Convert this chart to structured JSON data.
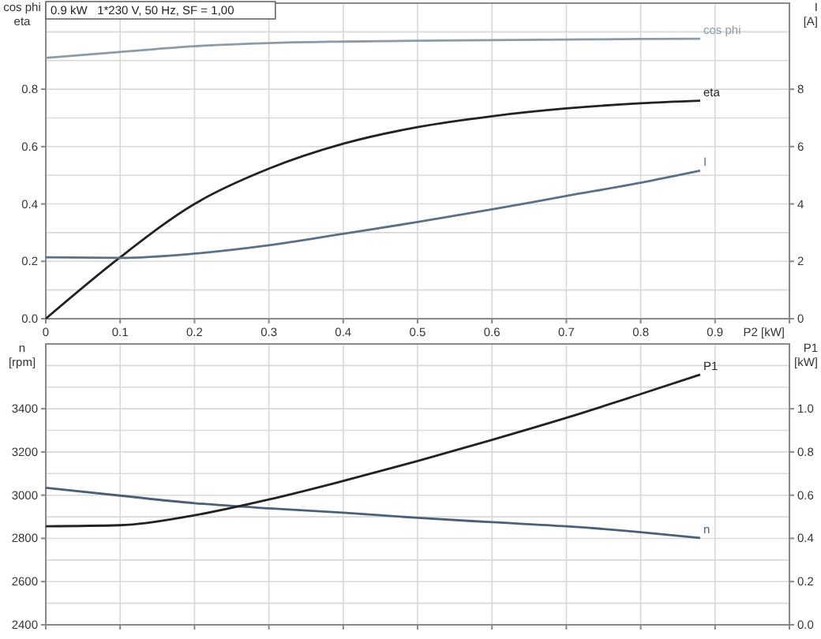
{
  "chart_data": [
    {
      "type": "line",
      "title": "0.9 kW   1*230 V, 50 Hz, SF = 1,00",
      "xlabel": "P2 [kW]",
      "ylabel": "cos phi\neta",
      "y2label": "I\n[A]",
      "x": [
        0,
        0.1,
        0.2,
        0.3,
        0.4,
        0.5,
        0.6,
        0.7,
        0.8,
        0.88
      ],
      "xlim": [
        0,
        1.0
      ],
      "xticks": [
        {
          "value": 0,
          "label": "0"
        },
        0.1,
        0.2,
        0.3,
        0.4,
        0.5,
        0.6,
        0.7,
        0.8,
        0.9,
        {
          "value": 1.0,
          "label": null
        }
      ],
      "ylim": [
        0,
        1.1
      ],
      "yticks": [
        {
          "value": 0,
          "label": "0.0"
        },
        {
          "value": 0.1,
          "label": null
        },
        0.2,
        {
          "value": 0.3,
          "label": null
        },
        0.4,
        {
          "value": 0.5,
          "label": null
        },
        0.6,
        {
          "value": 0.7,
          "label": null
        },
        0.8,
        {
          "value": 0.9,
          "label": null
        },
        {
          "value": 1.0,
          "label": null
        }
      ],
      "y2lim": [
        0,
        11
      ],
      "y2ticks": [
        0,
        2,
        4,
        6,
        8
      ],
      "grid": true,
      "series": [
        {
          "name": "cos phi",
          "color": "#8c9ba6",
          "values": [
            0.909,
            0.93,
            0.95,
            0.961,
            0.966,
            0.969,
            0.971,
            0.973,
            0.975,
            0.976
          ]
        },
        {
          "name": "eta",
          "color": "#222222",
          "values": [
            0,
            0.214,
            0.4,
            0.523,
            0.61,
            0.668,
            0.706,
            0.733,
            0.751,
            0.76
          ]
        },
        {
          "name": "I",
          "color": "#5a7088",
          "axis": "y2",
          "values": [
            2.14,
            2.12,
            2.27,
            2.56,
            2.96,
            3.37,
            3.81,
            4.28,
            4.74,
            5.16
          ]
        }
      ]
    },
    {
      "type": "line",
      "ylabel": "n\n[rpm]",
      "y2label": "P1\n[kW]",
      "x": [
        0,
        0.1,
        0.2,
        0.3,
        0.4,
        0.5,
        0.6,
        0.7,
        0.8,
        0.88
      ],
      "xlim": [
        0,
        1.0
      ],
      "xticks": [
        0,
        0.1,
        0.2,
        0.3,
        0.4,
        0.5,
        0.6,
        0.7,
        0.8,
        0.9,
        1.0
      ],
      "tick_labels": "y",
      "ylim": [
        2400,
        3700
      ],
      "yticks": [
        2400,
        {
          "value": 2500,
          "label": null
        },
        2600,
        {
          "value": 2700,
          "label": null
        },
        2800,
        {
          "value": 2900,
          "label": null
        },
        3000,
        {
          "value": 3100,
          "label": null
        },
        3200,
        {
          "value": 3300,
          "label": null
        },
        3400,
        {
          "value": 3500,
          "label": null
        },
        {
          "value": 3600,
          "label": null
        }
      ],
      "y2lim": [
        0,
        1.3
      ],
      "y2ticks": [
        {
          "value": 0,
          "label": "0.0"
        },
        0.2,
        0.4,
        0.6,
        0.8,
        {
          "value": 1.0,
          "label": "1.0"
        }
      ],
      "grid": true,
      "series": [
        {
          "name": "n",
          "color": "#4a6078",
          "values": [
            3034,
            2998,
            2963,
            2939,
            2919,
            2895,
            2875,
            2856,
            2829,
            2802
          ]
        },
        {
          "name": "P1",
          "color": "#222222",
          "axis": "y2",
          "values": [
            0.456,
            0.461,
            0.507,
            0.58,
            0.666,
            0.758,
            0.856,
            0.958,
            1.068,
            1.158
          ]
        }
      ]
    }
  ]
}
